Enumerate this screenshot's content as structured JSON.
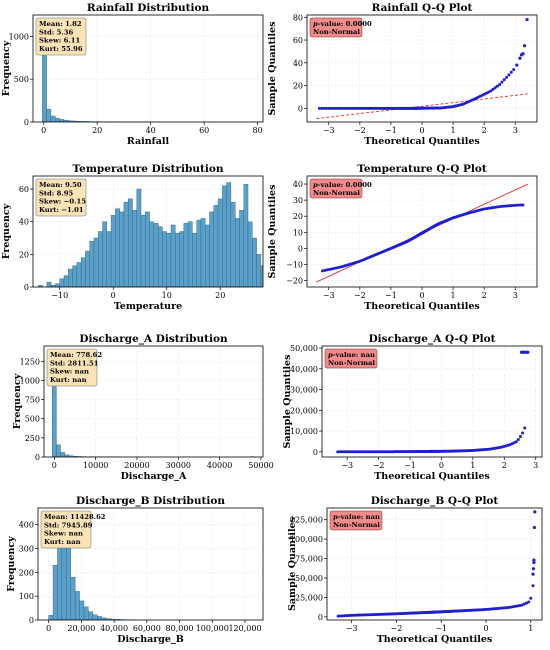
{
  "figure": {
    "background": "#ffffff",
    "hist_color": "#5aa0c8",
    "hist_edge": "#2f5f80",
    "qq_point_color": "#1f1fd0",
    "qq_line_color": "#e03030",
    "stats_box_color": "#fbe3b8",
    "pvalue_box_color": "#f28b8b"
  },
  "chart_data": [
    {
      "id": "rain-hist",
      "type": "bar",
      "title": "Rainfall Distribution",
      "xlabel": "Rainfall",
      "ylabel": "Frequency",
      "xlim": [
        -4,
        82
      ],
      "ylim": [
        0,
        1250
      ],
      "xticks": [
        0,
        20,
        40,
        60,
        80
      ],
      "xtick_labels": [
        "0",
        "20",
        "40",
        "60",
        "80"
      ],
      "yticks": [
        0,
        500,
        1000
      ],
      "ytick_labels": [
        "0",
        "500",
        "1000"
      ],
      "bin_start": -0.5,
      "bin_width": 1.6,
      "values": [
        1190,
        150,
        70,
        45,
        30,
        22,
        15,
        12,
        9,
        7,
        6,
        5,
        4,
        3,
        3,
        3,
        2,
        2,
        2,
        1,
        1,
        1,
        1,
        1,
        1,
        1,
        0,
        1,
        0,
        0,
        0,
        0,
        0,
        0,
        0,
        0,
        0,
        0,
        0,
        0,
        0,
        0,
        0,
        0,
        0,
        0,
        0,
        0,
        0,
        1
      ],
      "stats": [
        "Mean: 1.82",
        "Std: 5.36",
        "Skew: 6.11",
        "Kurt: 55.96"
      ],
      "grid": true
    },
    {
      "id": "rain-qq",
      "type": "scatter",
      "title": "Rainfall Q-Q Plot",
      "xlabel": "Theoretical Quantiles",
      "ylabel": "Sample Quantiles",
      "xlim": [
        -3.7,
        3.7
      ],
      "ylim": [
        -12,
        82
      ],
      "xticks": [
        -3,
        -2,
        -1,
        0,
        1,
        2,
        3
      ],
      "xtick_labels": [
        "−3",
        "−2",
        "−1",
        "0",
        "1",
        "2",
        "3"
      ],
      "yticks": [
        0,
        20,
        40,
        60,
        80
      ],
      "ytick_labels": [
        "0",
        "20",
        "40",
        "60",
        "80"
      ],
      "pvalue_label": "p",
      "pvalue": "-value: 0.0000",
      "verdict": "Non-Normal",
      "line": {
        "slope": 3.2,
        "intercept": 1.82
      },
      "curve": [
        [
          -3.3,
          0
        ],
        [
          -0.3,
          0
        ],
        [
          0.6,
          0.3
        ],
        [
          1.0,
          1.5
        ],
        [
          1.3,
          3.5
        ],
        [
          1.6,
          7
        ],
        [
          1.9,
          11
        ],
        [
          2.2,
          15
        ],
        [
          2.5,
          21
        ],
        [
          2.75,
          28
        ],
        [
          2.95,
          34
        ]
      ],
      "curve_n": 130,
      "outliers": [
        [
          3.05,
          38
        ],
        [
          3.15,
          44
        ],
        [
          3.2,
          47
        ],
        [
          3.25,
          48
        ],
        [
          3.3,
          55
        ],
        [
          3.38,
          78
        ]
      ],
      "grid": true
    },
    {
      "id": "temp-hist",
      "type": "bar",
      "title": "Temperature Distribution",
      "xlabel": "Temperature",
      "ylabel": "Frequency",
      "xlim": [
        -15,
        28
      ],
      "ylim": [
        0,
        68
      ],
      "xticks": [
        -10,
        0,
        10,
        20
      ],
      "xtick_labels": [
        "−10",
        "0",
        "10",
        "20"
      ],
      "yticks": [
        0,
        20,
        40,
        60
      ],
      "ytick_labels": [
        "0",
        "20",
        "40",
        "60"
      ],
      "bin_start": -14,
      "bin_width": 0.8,
      "values": [
        1,
        0,
        3,
        1,
        2,
        5,
        7,
        11,
        13,
        15,
        18,
        22,
        28,
        30,
        34,
        40,
        34,
        44,
        48,
        46,
        52,
        54,
        47,
        60,
        44,
        46,
        40,
        39,
        37,
        34,
        33,
        38,
        33,
        34,
        39,
        40,
        33,
        41,
        42,
        38,
        46,
        50,
        54,
        62,
        64,
        52,
        42,
        47,
        63,
        40,
        30,
        20,
        13,
        10
      ],
      "stats": [
        "Mean: 9.50",
        "Std: 8.95",
        "Skew: −0.15",
        "Kurt: −1.01"
      ],
      "grid": true
    },
    {
      "id": "temp-qq",
      "type": "scatter",
      "title": "Temperature Q-Q Plot",
      "xlabel": "Theoretical Quantiles",
      "ylabel": "Sample Quantiles",
      "xlim": [
        -3.7,
        3.7
      ],
      "ylim": [
        -24,
        45
      ],
      "xticks": [
        -3,
        -2,
        -1,
        0,
        1,
        2,
        3
      ],
      "xtick_labels": [
        "−3",
        "−2",
        "−1",
        "0",
        "1",
        "2",
        "3"
      ],
      "yticks": [
        -20,
        -10,
        0,
        10,
        20,
        30,
        40
      ],
      "ytick_labels": [
        "−20",
        "−10",
        "0",
        "10",
        "20",
        "30",
        "40"
      ],
      "pvalue_label": "p",
      "pvalue": "-value: 0.0000",
      "verdict": "Non-Normal",
      "line": {
        "slope": 8.95,
        "intercept": 9.5
      },
      "curve": [
        [
          -3.2,
          -14
        ],
        [
          -2.6,
          -11.5
        ],
        [
          -2.0,
          -8
        ],
        [
          -1.5,
          -4
        ],
        [
          -1.0,
          0
        ],
        [
          -0.5,
          4
        ],
        [
          0.0,
          9.5
        ],
        [
          0.5,
          15
        ],
        [
          1.0,
          19
        ],
        [
          1.5,
          22
        ],
        [
          2.0,
          24.5
        ],
        [
          2.5,
          26
        ],
        [
          3.0,
          26.8
        ],
        [
          3.25,
          27
        ]
      ],
      "curve_n": 140,
      "outliers": [],
      "grid": true
    },
    {
      "id": "disA-hist",
      "type": "bar",
      "title": "Discharge_A Distribution",
      "xlabel": "Discharge_A",
      "ylabel": "Frequency",
      "xlim": [
        -2500,
        50500
      ],
      "ylim": [
        0,
        1450
      ],
      "xticks": [
        0,
        10000,
        20000,
        30000,
        40000,
        50000
      ],
      "xtick_labels": [
        "0",
        "10000",
        "20000",
        "30000",
        "40000",
        "50000"
      ],
      "yticks": [
        0,
        250,
        500,
        750,
        1000,
        1250
      ],
      "ytick_labels": [
        "0",
        "250",
        "500",
        "750",
        "1000",
        "1250"
      ],
      "bin_start": -500,
      "bin_width": 1000,
      "values": [
        1390,
        160,
        60,
        30,
        18,
        10,
        7,
        5,
        4,
        3,
        2,
        2,
        1,
        1,
        1,
        1,
        0,
        0,
        0,
        0,
        0,
        0,
        0,
        0,
        0,
        0,
        0,
        0,
        0,
        0,
        0,
        0,
        0,
        0,
        0,
        0,
        0,
        0,
        0,
        0,
        0,
        0,
        0,
        0,
        0,
        0,
        0,
        0,
        5
      ],
      "stats": [
        "Mean: 778.62",
        "Std: 2811.51",
        "Skew: nan",
        "Kurt: nan"
      ],
      "grid": true
    },
    {
      "id": "disA-qq",
      "type": "scatter",
      "title": "Discharge_A Q-Q Plot",
      "xlabel": "Theoretical Quantiles",
      "ylabel": "Sample Quantiles",
      "xlim": [
        -3.8,
        3.2
      ],
      "ylim": [
        -2500,
        51000
      ],
      "xticks": [
        -3,
        -2,
        -1,
        0,
        1,
        2,
        3
      ],
      "xtick_labels": [
        "−3",
        "−2",
        "−1",
        "0",
        "1",
        "2",
        "3"
      ],
      "yticks": [
        0,
        10000,
        20000,
        30000,
        40000,
        50000
      ],
      "ytick_labels": [
        "0",
        "10,000",
        "20,000",
        "30,000",
        "40,000",
        "50,000"
      ],
      "pvalue_label": "p",
      "pvalue": "-value: nan",
      "verdict": "Non-Normal",
      "line": null,
      "curve": [
        [
          -3.3,
          0
        ],
        [
          -2.5,
          20
        ],
        [
          -1.5,
          60
        ],
        [
          -0.5,
          150
        ],
        [
          0.3,
          300
        ],
        [
          1.0,
          650
        ],
        [
          1.5,
          1200
        ],
        [
          1.9,
          2200
        ],
        [
          2.2,
          3500
        ],
        [
          2.4,
          5000
        ],
        [
          2.5,
          7000
        ],
        [
          2.6,
          9500
        ],
        [
          2.65,
          11500
        ]
      ],
      "curve_n": 140,
      "outliers": [
        [
          2.55,
          48000
        ],
        [
          2.6,
          48000
        ],
        [
          2.65,
          48000
        ],
        [
          2.7,
          48000
        ],
        [
          2.75,
          48000
        ]
      ],
      "grid": true
    },
    {
      "id": "disB-hist",
      "type": "bar",
      "title": "Discharge_B Distribution",
      "xlabel": "Discharge_B",
      "ylabel": "Frequency",
      "xlim": [
        -6500,
        131000
      ],
      "ylim": [
        0,
        470
      ],
      "xticks": [
        0,
        20000,
        40000,
        60000,
        80000,
        100000,
        120000
      ],
      "xtick_labels": [
        "0",
        "20,000",
        "40,000",
        "60,000",
        "80,000",
        "100,000",
        "120,000"
      ],
      "yticks": [
        0,
        100,
        200,
        300,
        400
      ],
      "ytick_labels": [
        "0",
        "100",
        "200",
        "300",
        "400"
      ],
      "bin_start": 0,
      "bin_width": 2700,
      "values": [
        20,
        230,
        380,
        440,
        300,
        180,
        120,
        80,
        55,
        35,
        22,
        15,
        9,
        6,
        4,
        3,
        2,
        1,
        1,
        1
      ],
      "stats": [
        "Mean: 11428.62",
        "Std: 7945.89",
        "Skew: nan",
        "Kurt: nan"
      ],
      "grid": true
    },
    {
      "id": "disB-qq",
      "type": "scatter",
      "title": "Discharge_B Q-Q Plot",
      "xlabel": "Theoretical Quantiles",
      "ylabel": "Sample Quantiles",
      "xlim": [
        -3.55,
        1.25
      ],
      "ylim": [
        -4000,
        140000
      ],
      "xticks": [
        -3,
        -2,
        -1,
        0,
        1
      ],
      "xtick_labels": [
        "−3",
        "−2",
        "−1",
        "0",
        "1"
      ],
      "yticks": [
        0,
        25000,
        50000,
        75000,
        100000,
        125000
      ],
      "ytick_labels": [
        "0",
        "25,000",
        "50,000",
        "75,000",
        "100,000",
        "125,000"
      ],
      "pvalue_label": "p",
      "pvalue": "-value: nan",
      "verdict": "Non-Normal",
      "line": null,
      "curve": [
        [
          -3.3,
          1000
        ],
        [
          -3.0,
          2000
        ],
        [
          -2.0,
          4000
        ],
        [
          -1.0,
          6500
        ],
        [
          0.0,
          9500
        ],
        [
          0.5,
          12000
        ],
        [
          0.8,
          15000
        ],
        [
          0.95,
          19000
        ],
        [
          1.0,
          24000
        ],
        [
          1.03,
          30000
        ],
        [
          1.05,
          40000
        ]
      ],
      "curve_n": 140,
      "outliers": [
        [
          1.05,
          55000
        ],
        [
          1.06,
          62000
        ],
        [
          1.07,
          70000
        ],
        [
          1.07,
          73000
        ],
        [
          1.08,
          115000
        ],
        [
          1.09,
          135000
        ]
      ],
      "grid": true
    }
  ]
}
